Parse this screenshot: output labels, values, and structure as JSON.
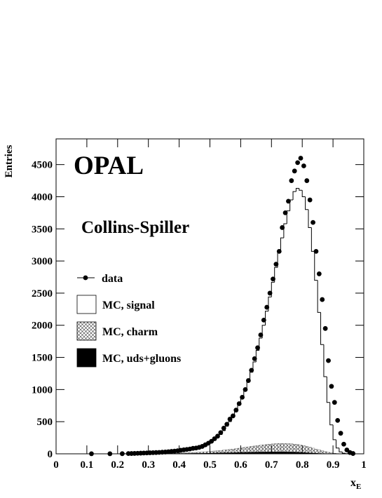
{
  "chart_data": {
    "type": "histogram",
    "title": "OPAL",
    "subtitle": "Collins-Spiller",
    "ylabel": "Entries",
    "xlabel": "x",
    "xlabel_subscript": "E",
    "xlim": [
      0,
      1
    ],
    "ylim": [
      0,
      4900
    ],
    "xticks": [
      0,
      0.1,
      0.2,
      0.3,
      0.4,
      0.5,
      0.6,
      0.7,
      0.8,
      0.9,
      1
    ],
    "yticks": [
      0,
      500,
      1000,
      1500,
      2000,
      2500,
      3000,
      3500,
      4000,
      4500
    ],
    "bins": [
      0.1,
      0.11,
      0.12,
      0.13,
      0.14,
      0.15,
      0.16,
      0.17,
      0.18,
      0.19,
      0.2,
      0.21,
      0.22,
      0.23,
      0.24,
      0.25,
      0.26,
      0.27,
      0.28,
      0.29,
      0.3,
      0.31,
      0.32,
      0.33,
      0.34,
      0.35,
      0.36,
      0.37,
      0.38,
      0.39,
      0.4,
      0.41,
      0.42,
      0.43,
      0.44,
      0.45,
      0.46,
      0.47,
      0.48,
      0.49,
      0.5,
      0.51,
      0.52,
      0.53,
      0.54,
      0.55,
      0.56,
      0.57,
      0.58,
      0.59,
      0.6,
      0.61,
      0.62,
      0.63,
      0.64,
      0.65,
      0.66,
      0.67,
      0.68,
      0.69,
      0.7,
      0.71,
      0.72,
      0.73,
      0.74,
      0.75,
      0.76,
      0.77,
      0.78,
      0.79,
      0.8,
      0.81,
      0.82,
      0.83,
      0.84,
      0.85,
      0.86,
      0.87,
      0.88,
      0.89,
      0.9,
      0.91,
      0.92,
      0.93,
      0.94,
      0.95,
      0.96,
      0.97,
      0.98,
      0.99,
      1.0
    ],
    "series": [
      {
        "name": "MC, signal",
        "style": "step",
        "color": "#000000",
        "values": [
          0,
          0,
          0,
          0,
          0,
          0,
          0,
          0,
          0,
          0,
          0,
          0,
          2,
          3,
          4,
          5,
          6,
          8,
          10,
          12,
          14,
          16,
          18,
          20,
          22,
          25,
          28,
          32,
          36,
          40,
          45,
          50,
          56,
          62,
          70,
          80,
          92,
          105,
          125,
          150,
          180,
          210,
          250,
          300,
          360,
          430,
          500,
          580,
          660,
          760,
          870,
          990,
          1120,
          1270,
          1430,
          1610,
          1800,
          2000,
          2220,
          2440,
          2670,
          2900,
          3130,
          3360,
          3580,
          3780,
          3950,
          4080,
          4130,
          4100,
          4000,
          3800,
          3520,
          3150,
          2700,
          2200,
          1700,
          1200,
          800,
          450,
          220,
          90,
          30,
          10,
          3,
          1,
          0,
          0,
          0,
          0
        ]
      },
      {
        "name": "MC, charm",
        "style": "hatch",
        "color": "#555555",
        "values": [
          0,
          0,
          0,
          0,
          0,
          0,
          0,
          0,
          0,
          0,
          0,
          0,
          0,
          0,
          0,
          0,
          0,
          1,
          1,
          1,
          2,
          2,
          3,
          3,
          4,
          5,
          6,
          7,
          8,
          10,
          12,
          14,
          16,
          18,
          20,
          23,
          26,
          29,
          32,
          36,
          40,
          44,
          48,
          52,
          57,
          62,
          68,
          74,
          80,
          87,
          94,
          101,
          108,
          115,
          121,
          127,
          133,
          139,
          145,
          150,
          154,
          158,
          160,
          162,
          160,
          158,
          155,
          150,
          144,
          136,
          126,
          115,
          102,
          88,
          74,
          60,
          46,
          34,
          23,
          14,
          8,
          4,
          2,
          1,
          0,
          0,
          0,
          0,
          0,
          0
        ]
      },
      {
        "name": "MC, uds+gluons",
        "style": "solid",
        "color": "#000000",
        "values": [
          0,
          0,
          0,
          0,
          0,
          0,
          0,
          0,
          0,
          0,
          0,
          0,
          0,
          0,
          0,
          0,
          1,
          1,
          1,
          2,
          2,
          2,
          3,
          3,
          4,
          4,
          5,
          5,
          6,
          6,
          7,
          7,
          8,
          8,
          9,
          10,
          10,
          11,
          12,
          13,
          14,
          15,
          16,
          17,
          18,
          19,
          20,
          21,
          22,
          23,
          24,
          25,
          26,
          27,
          28,
          29,
          30,
          30,
          31,
          31,
          32,
          32,
          32,
          32,
          32,
          31,
          30,
          29,
          27,
          25,
          23,
          20,
          17,
          14,
          11,
          8,
          6,
          4,
          2,
          1,
          1,
          0,
          0,
          0,
          0,
          0,
          0,
          0,
          0,
          0
        ]
      }
    ],
    "points": {
      "name": "data",
      "color": "#000000",
      "x": [
        0.115,
        0.175,
        0.215,
        0.235,
        0.245,
        0.255,
        0.265,
        0.275,
        0.285,
        0.295,
        0.305,
        0.315,
        0.325,
        0.335,
        0.345,
        0.355,
        0.365,
        0.375,
        0.385,
        0.395,
        0.405,
        0.415,
        0.425,
        0.435,
        0.445,
        0.455,
        0.465,
        0.475,
        0.485,
        0.495,
        0.505,
        0.515,
        0.525,
        0.535,
        0.545,
        0.555,
        0.565,
        0.575,
        0.585,
        0.595,
        0.605,
        0.615,
        0.625,
        0.635,
        0.645,
        0.655,
        0.665,
        0.675,
        0.685,
        0.695,
        0.705,
        0.715,
        0.725,
        0.735,
        0.745,
        0.755,
        0.765,
        0.775,
        0.785,
        0.795,
        0.805,
        0.815,
        0.825,
        0.835,
        0.845,
        0.855,
        0.865,
        0.875,
        0.885,
        0.895,
        0.905,
        0.915,
        0.925,
        0.935,
        0.945,
        0.955,
        0.965
      ],
      "values": [
        1,
        1,
        2,
        4,
        5,
        6,
        8,
        10,
        12,
        14,
        16,
        18,
        20,
        22,
        25,
        28,
        32,
        38,
        42,
        48,
        55,
        62,
        68,
        75,
        85,
        90,
        100,
        115,
        140,
        165,
        195,
        235,
        275,
        330,
        400,
        460,
        540,
        590,
        680,
        780,
        880,
        1000,
        1140,
        1300,
        1480,
        1650,
        1850,
        2080,
        2280,
        2500,
        2720,
        2950,
        3150,
        3520,
        3750,
        3930,
        4250,
        4400,
        4530,
        4600,
        4480,
        4250,
        3950,
        3600,
        3150,
        2800,
        2400,
        1950,
        1450,
        1050,
        800,
        520,
        320,
        150,
        60,
        20,
        5
      ]
    }
  }
}
